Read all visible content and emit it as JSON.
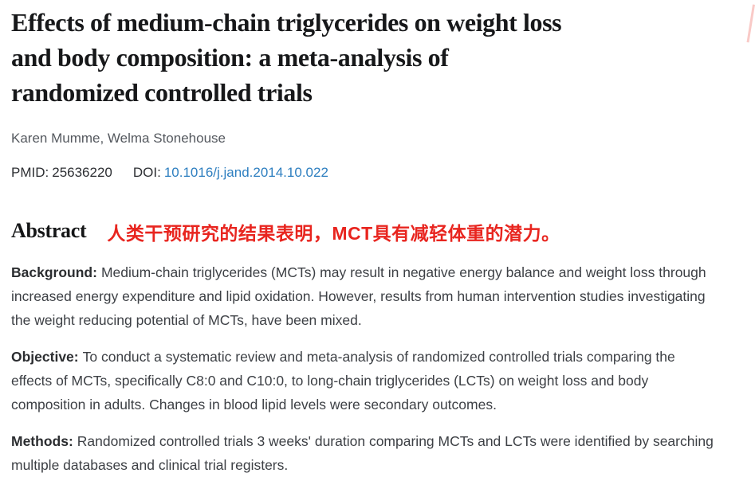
{
  "page": {
    "title": "Effects of medium-chain triglycerides on weight loss and body composition: a meta-analysis of randomized controlled trials",
    "title_lines": [
      "Effects of medium-chain triglycerides on weight loss",
      "and body composition: a meta-analysis of",
      "randomized controlled trials"
    ],
    "authors": "Karen Mumme, Welma Stonehouse",
    "pmid_label": "PMID:",
    "pmid_value": "25636220",
    "doi_label": "DOI:",
    "doi_value": "10.1016/j.jand.2014.10.022"
  },
  "abstract": {
    "heading": "Abstract",
    "annotation_cn": "人类干预研究的结果表明，MCT具有减轻体重的潜力。",
    "paragraphs": [
      {
        "label": "Background:",
        "text": "Medium-chain triglycerides (MCTs) may result in negative energy balance and weight loss through increased energy expenditure and lipid oxidation. However, results from human intervention studies investigating the weight reducing potential of MCTs, have been mixed."
      },
      {
        "label": "Objective:",
        "text": "To conduct a systematic review and meta-analysis of randomized controlled trials comparing the effects of MCTs, specifically C8:0 and C10:0, to long-chain triglycerides (LCTs) on weight loss and body composition in adults. Changes in blood lipid levels were secondary outcomes."
      },
      {
        "label": "Methods:",
        "text": "Randomized controlled trials 3 weeks' duration comparing MCTs and LCTs were identified by searching multiple databases and clinical trial registers."
      }
    ]
  },
  "colors": {
    "doi_link_blue": "#2e7fc0",
    "annotation_red": "#e8251f",
    "body_text": "#3d4045",
    "muted_text": "#55595f",
    "title_text": "#17181a"
  }
}
